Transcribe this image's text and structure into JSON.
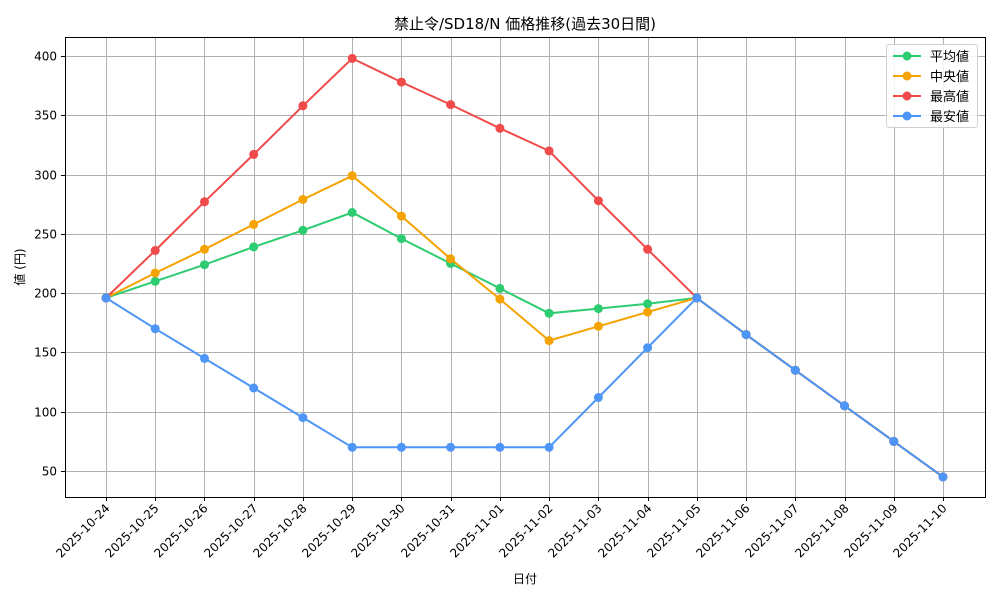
{
  "chart_data": {
    "type": "line",
    "title": "禁止令/SD18/N 価格推移(過去30日間)",
    "xlabel": "日付",
    "ylabel": "値 (円)",
    "x": [
      "2025-10-24",
      "2025-10-25",
      "2025-10-26",
      "2025-10-27",
      "2025-10-28",
      "2025-10-29",
      "2025-10-30",
      "2025-10-31",
      "2025-11-01",
      "2025-11-02",
      "2025-11-03",
      "2025-11-04",
      "2025-11-05",
      "2025-11-06",
      "2025-11-07",
      "2025-11-08",
      "2025-11-09",
      "2025-11-10"
    ],
    "series": [
      {
        "name": "平均値",
        "color": "#2ecc71",
        "values": [
          196,
          210,
          224,
          239,
          253,
          268,
          246,
          225,
          204,
          183,
          187,
          191,
          196,
          165,
          135,
          105,
          75,
          45
        ]
      },
      {
        "name": "中央値",
        "color": "#f5a300",
        "values": [
          196,
          217,
          237,
          258,
          279,
          299,
          265,
          229,
          195,
          160,
          172,
          184,
          196,
          165,
          135,
          105,
          75,
          45
        ]
      },
      {
        "name": "最高値",
        "color": "#f04a4a",
        "values": [
          196,
          236,
          277,
          317,
          358,
          398,
          378,
          359,
          339,
          320,
          278,
          237,
          196,
          165,
          135,
          105,
          75,
          45
        ]
      },
      {
        "name": "最安値",
        "color": "#4d96f7",
        "values": [
          196,
          170,
          145,
          120,
          95,
          70,
          70,
          70,
          70,
          70,
          112,
          154,
          196,
          165,
          135,
          105,
          75,
          45
        ]
      }
    ],
    "yticks": [
      50,
      100,
      150,
      200,
      250,
      300,
      350,
      400
    ],
    "ylim": [
      28,
      415
    ],
    "grid": true,
    "legend_position": "upper right",
    "marker": "circle"
  }
}
